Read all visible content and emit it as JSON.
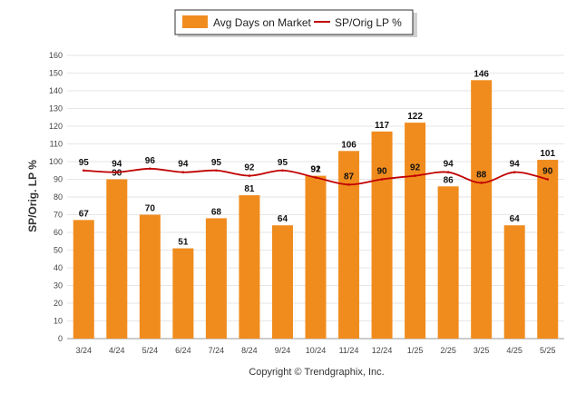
{
  "chart_data": {
    "type": "bar",
    "categories": [
      "3/24",
      "4/24",
      "5/24",
      "6/24",
      "7/24",
      "8/24",
      "9/24",
      "10/24",
      "11/24",
      "12/24",
      "1/25",
      "2/25",
      "3/25",
      "4/25",
      "5/25"
    ],
    "series": [
      {
        "name": "Avg Days on Market",
        "type": "bar",
        "color": "#F08C1E",
        "values": [
          67,
          90,
          70,
          51,
          68,
          81,
          64,
          92,
          106,
          117,
          122,
          86,
          146,
          64,
          101
        ],
        "labels": [
          "67",
          "90",
          "70",
          "51",
          "68",
          "81",
          "64",
          "92",
          "106",
          "117",
          "122",
          "86",
          "146",
          "64",
          "101"
        ]
      },
      {
        "name": "SP/Orig LP %",
        "type": "line",
        "color": "#C00000",
        "values": [
          95,
          94,
          96,
          94,
          95,
          92,
          95,
          91,
          87,
          90,
          92,
          94,
          88,
          94,
          90
        ],
        "labels": [
          "95",
          "94",
          "96",
          "94",
          "95",
          "92",
          "95",
          "91",
          "87",
          "90",
          "92",
          "94",
          "88",
          "94",
          "90"
        ]
      }
    ],
    "ylabel": "SP/Orig. LP %",
    "ylim": [
      0,
      160
    ],
    "yticks": [
      "0",
      "10",
      "20",
      "30",
      "40",
      "50",
      "60",
      "70",
      "80",
      "90",
      "100",
      "110",
      "120",
      "130",
      "140",
      "150",
      "160"
    ],
    "grid": true,
    "legend": "top-center"
  },
  "footer": {
    "copyright": "Copyright © Trendgraphix, Inc."
  }
}
